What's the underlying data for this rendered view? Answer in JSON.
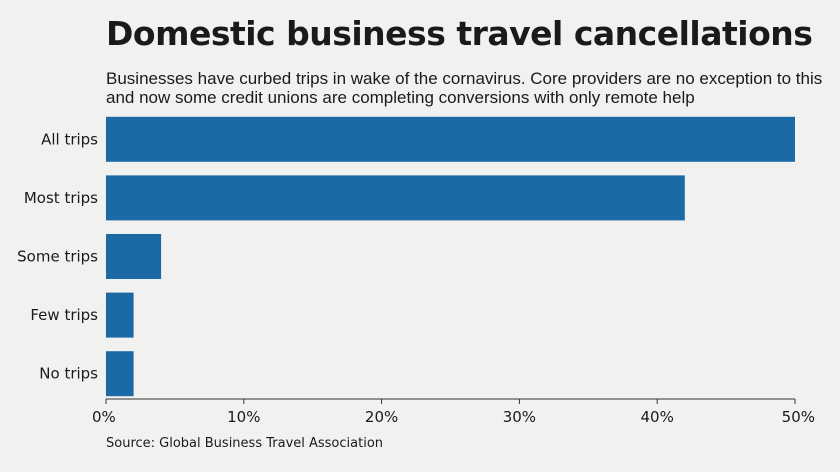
{
  "title": "Domestic business travel cancellations",
  "subtitle": "Businesses have curbed trips in wake of the cornavirus. Core providers are no exception to this and now some credit unions are completing conversions with only remote help",
  "source": "Source: Global Business Travel Association",
  "colors": {
    "bar": "#1b6aa5",
    "axis": "#333333",
    "background": "#f1f2f0"
  },
  "chart_data": {
    "type": "bar",
    "orientation": "horizontal",
    "categories": [
      "All trips",
      "Most trips",
      "Some trips",
      "Few trips",
      "No trips"
    ],
    "values": [
      50,
      42,
      4,
      2,
      2
    ],
    "xlim": [
      0,
      50
    ],
    "xticks": [
      0,
      10,
      20,
      30,
      40,
      50
    ],
    "xtick_labels": [
      "0%",
      "10%",
      "20%",
      "30%",
      "40%",
      "50%"
    ],
    "grid": false,
    "legend": "none"
  }
}
